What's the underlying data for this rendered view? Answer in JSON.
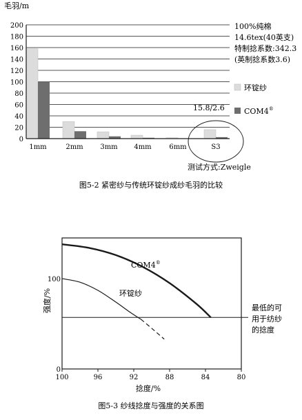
{
  "chart_data": [
    {
      "type": "bar",
      "ylabel": "毛羽/m",
      "ylim": [
        0,
        200
      ],
      "yticks": [
        0,
        20,
        40,
        60,
        80,
        100,
        120,
        140,
        160,
        180,
        200
      ],
      "categories": [
        "1mm",
        "2mm",
        "3mm",
        "4mm",
        "6mm",
        "S3"
      ],
      "series": [
        {
          "name": "环锭纱",
          "values": [
            158,
            30,
            12,
            6,
            1.5,
            15.8
          ],
          "color": "#dcdcdc"
        },
        {
          "name": "COM4",
          "values": [
            100,
            13,
            4,
            1.5,
            0.5,
            2.6
          ],
          "color": "#6e6e6e"
        }
      ],
      "info_lines": [
        "100%纯棉",
        "14.6tex(40英支)",
        "特制捻系数:342.3",
        "(英制捻系数3.6)"
      ],
      "annotation": "15.8/2.6",
      "note": "测试方式:Zweigle",
      "grid": true,
      "legend_position": "right",
      "caption": "图5-2  紧密纱与传统环锭纱成纱毛羽的比较",
      "legend_sup": "®"
    },
    {
      "type": "line",
      "xlabel": "捻度/%",
      "ylabel": "强度/%",
      "xlim": [
        100,
        80
      ],
      "xticks": [
        100,
        96,
        92,
        88,
        84,
        80
      ],
      "yticks": [
        0,
        100
      ],
      "series": [
        {
          "name": "COM4",
          "points": [
            [
              100,
              138
            ],
            [
              97,
              134
            ],
            [
              94,
              126
            ],
            [
              91,
              113
            ],
            [
              88,
              95
            ],
            [
              85,
              72
            ],
            [
              83.4,
              57
            ]
          ],
          "style": "bold"
        },
        {
          "name": "环锭纱",
          "points": [
            [
              100,
              100
            ],
            [
              98,
              96
            ],
            [
              96,
              87
            ],
            [
              94,
              74
            ],
            [
              92.3,
              62
            ],
            [
              91.2,
              55
            ]
          ],
          "style": "solid"
        },
        {
          "name": "环锭纱",
          "points": [
            [
              91.2,
              55
            ],
            [
              90,
              45
            ],
            [
              88.6,
              33
            ]
          ],
          "style": "dashed"
        }
      ],
      "hline": {
        "y": 57,
        "label": [
          "最低的可",
          "用于纺纱",
          "的捻度"
        ]
      },
      "grid": false,
      "caption": "图5-3  纱线捻度与强度的关系图",
      "legend_sup": "®"
    }
  ]
}
